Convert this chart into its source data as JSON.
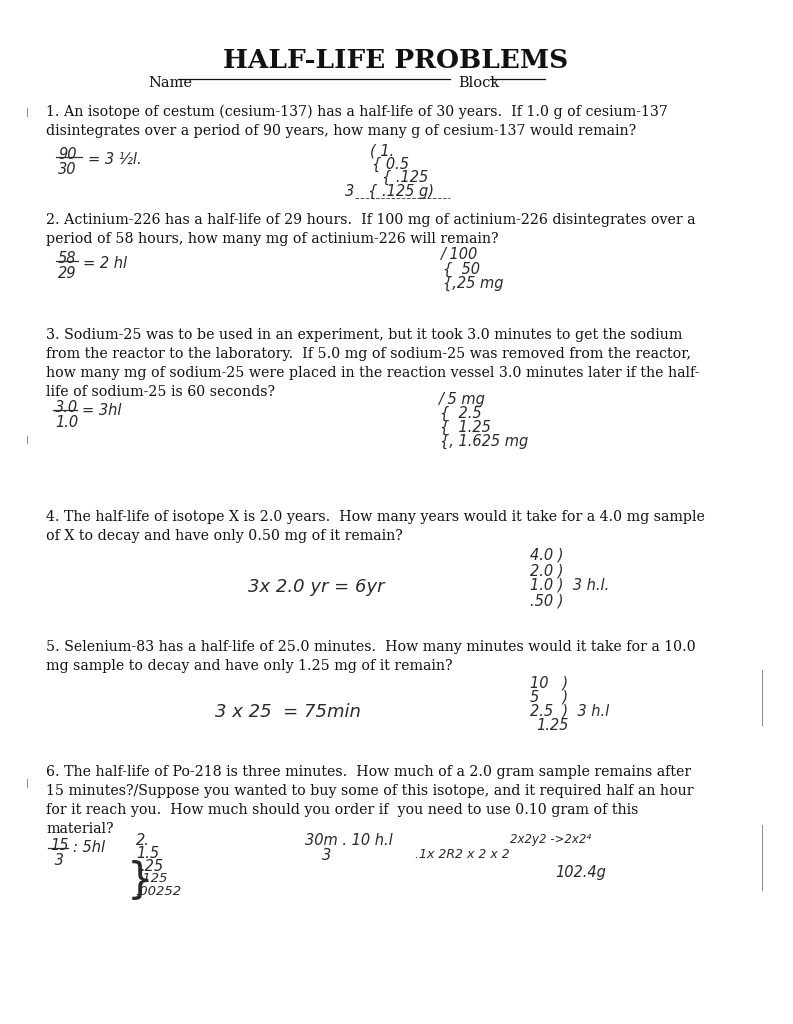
{
  "title": "HALF-LIFE PROBLEMS",
  "background_color": "#ffffff",
  "q1_text": "1. An isotope of cestum (cesium-137) has a half-life of 30 years.  If 1.0 g of cesium-137\ndisintegrates over a period of 90 years, how many g of cesium-137 would remain?",
  "q2_text": "2. Actinium-226 has a half-life of 29 hours.  If 100 mg of actinium-226 disintegrates over a\nperiod of 58 hours, how many mg of actinium-226 will remain?",
  "q3_text": "3. Sodium-25 was to be used in an experiment, but it took 3.0 minutes to get the sodium\nfrom the reactor to the laboratory.  If 5.0 mg of sodium-25 was removed from the reactor,\nhow many mg of sodium-25 were placed in the reaction vessel 3.0 minutes later if the half-\nlife of sodium-25 is 60 seconds?",
  "q4_text": "4. The half-life of isotope X is 2.0 years.  How many years would it take for a 4.0 mg sample\nof X to decay and have only 0.50 mg of it remain?",
  "q5_text": "5. Selenium-83 has a half-life of 25.0 minutes.  How many minutes would it take for a 10.0\nmg sample to decay and have only 1.25 mg of it remain?",
  "q6_text": "6. The half-life of Po-218 is three minutes.  How much of a 2.0 gram sample remains after\n15 minutes?/Suppose you wanted to buy some of this isotope, and it required half an hour\nfor it reach you.  How much should you order if  you need to use 0.10 gram of this\nmaterial?"
}
